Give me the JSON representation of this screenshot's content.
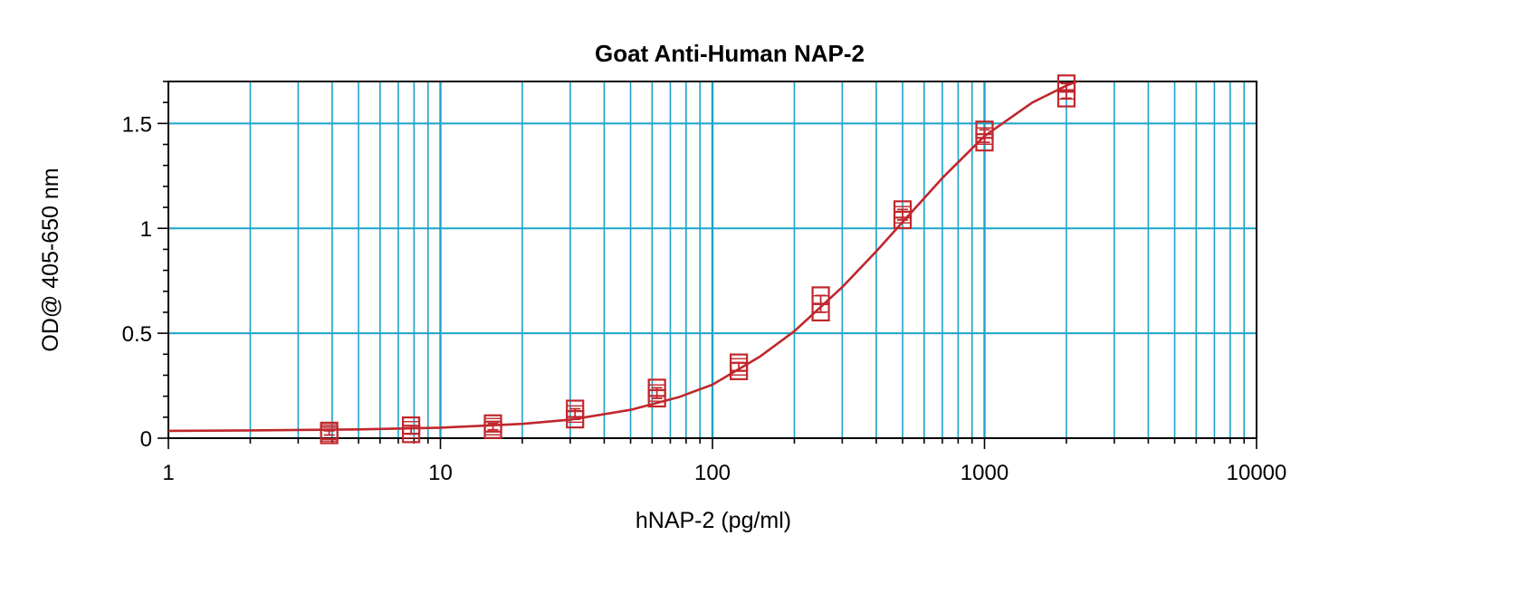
{
  "chart_data": {
    "type": "scatter",
    "title": "Goat Anti-Human NAP-2",
    "xlabel": "hNAP-2 (pg/ml)",
    "ylabel": "OD@ 405-650 nm",
    "x_scale": "log",
    "xlim": [
      1,
      10000
    ],
    "ylim": [
      0,
      1.7
    ],
    "x_ticks": [
      1,
      10,
      100,
      1000,
      10000
    ],
    "x_tick_labels": [
      "1",
      "10",
      "100",
      "1000",
      "10000"
    ],
    "y_ticks": [
      0,
      0.5,
      1,
      1.5
    ],
    "y_tick_labels": [
      "0",
      "0.5",
      "1",
      "1.5"
    ],
    "grid": true,
    "colors": {
      "grid": "#1aa3c9",
      "series": "#c0272d",
      "axis": "#000000"
    },
    "series": [
      {
        "marker": "square",
        "x": [
          3.9,
          7.8,
          15.6,
          31.25,
          62.5,
          125,
          250,
          500,
          1000,
          2000
        ],
        "y": [
          0.025,
          0.04,
          0.055,
          0.115,
          0.215,
          0.34,
          0.64,
          1.065,
          1.44,
          1.655
        ],
        "y_low": [
          0.015,
          0.02,
          0.04,
          0.09,
          0.19,
          0.32,
          0.6,
          1.04,
          1.41,
          1.62
        ],
        "y_high": [
          0.035,
          0.06,
          0.07,
          0.14,
          0.24,
          0.36,
          0.68,
          1.09,
          1.47,
          1.69
        ]
      }
    ],
    "fit_curve": {
      "x": [
        1,
        2,
        5,
        10,
        20,
        30,
        50,
        75,
        100,
        150,
        200,
        300,
        400,
        500,
        700,
        1000,
        1500,
        2000,
        2500
      ],
      "y": [
        0.035,
        0.037,
        0.042,
        0.05,
        0.068,
        0.088,
        0.135,
        0.195,
        0.255,
        0.39,
        0.51,
        0.72,
        0.89,
        1.03,
        1.24,
        1.44,
        1.6,
        1.68,
        1.73
      ]
    }
  }
}
